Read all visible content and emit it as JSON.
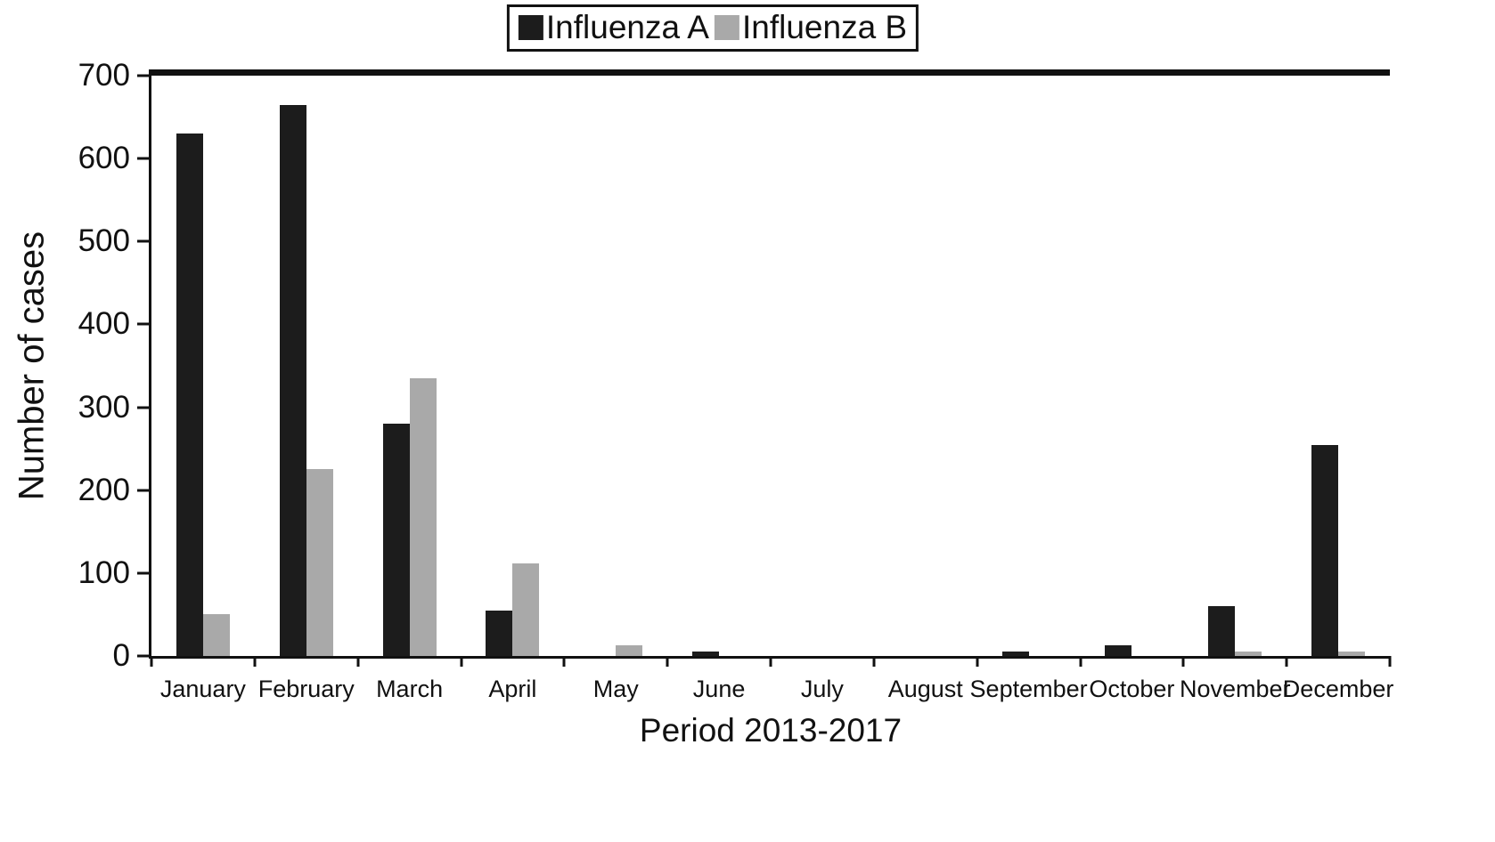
{
  "chart_data": {
    "type": "bar",
    "title": "",
    "xlabel": "Period 2013-2017",
    "ylabel": "Number of cases",
    "ylim": [
      0,
      700
    ],
    "ytick_step": 100,
    "grid": false,
    "legend_position": "top-center",
    "categories": [
      "January",
      "February",
      "March",
      "April",
      "May",
      "June",
      "July",
      "August",
      "September",
      "October",
      "November",
      "December"
    ],
    "series": [
      {
        "name": "Influenza A",
        "color": "#1c1c1c",
        "values": [
          630,
          665,
          280,
          55,
          0,
          5,
          0,
          0,
          5,
          13,
          60,
          255
        ]
      },
      {
        "name": "Influenza B",
        "color": "#a9a9a9",
        "values": [
          50,
          225,
          335,
          112,
          13,
          0,
          0,
          0,
          0,
          0,
          5,
          5
        ]
      }
    ]
  },
  "colors": {
    "background": "#ffffff",
    "axis": "#111111"
  }
}
